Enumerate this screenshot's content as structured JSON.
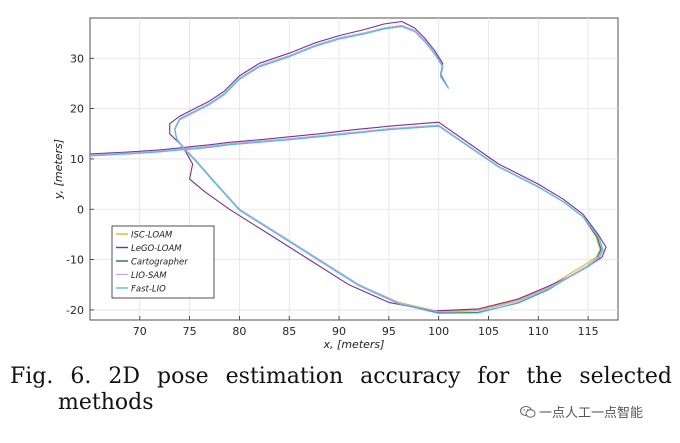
{
  "chart_data": {
    "type": "line",
    "title": "",
    "xlabel": "x, [meters]",
    "ylabel": "y, [meters]",
    "xlim": [
      65,
      118
    ],
    "ylim": [
      -22,
      38
    ],
    "xticks": [
      70,
      75,
      80,
      85,
      90,
      95,
      100,
      105,
      110,
      115
    ],
    "yticks": [
      -20,
      -10,
      0,
      10,
      20,
      30
    ],
    "grid": true,
    "legend_position": "bottom-left",
    "series": [
      {
        "name": "ISC-LOAM",
        "color": "#EDB120",
        "x": [
          101.0,
          100.2,
          100.4,
          99.6,
          98.6,
          97.6,
          96.3,
          94.5,
          92.5,
          90.0,
          87.5,
          85.0,
          82.0,
          80.0,
          78.5,
          77.0,
          75.5,
          74.0,
          73.5,
          73.7,
          74.5,
          75.5,
          77.5,
          80.0,
          84.0,
          88.0,
          92.0,
          96.0,
          100.0,
          104.0,
          108.0,
          111.0,
          113.0,
          114.7,
          115.8,
          116.2,
          115.8,
          114.5,
          112.5,
          110.0,
          106.0,
          100.0,
          95.0,
          91.5,
          88.0,
          85.0,
          82.0,
          79.0,
          77.0,
          75.5,
          74.0,
          72.0,
          69.0,
          65.0
        ],
        "y": [
          24.0,
          26.5,
          28.5,
          31.0,
          33.5,
          35.5,
          36.5,
          36.0,
          35.0,
          34.0,
          32.5,
          30.5,
          28.5,
          26.0,
          23.0,
          21.0,
          19.5,
          18.0,
          16.0,
          14.0,
          12.0,
          10.0,
          5.5,
          0.0,
          -5.0,
          -10.0,
          -15.0,
          -18.5,
          -20.3,
          -20.0,
          -18.0,
          -15.5,
          -13.0,
          -11.0,
          -9.5,
          -8.0,
          -5.5,
          -1.5,
          1.5,
          4.5,
          8.5,
          16.7,
          16.0,
          15.3,
          14.6,
          14.0,
          13.5,
          13.0,
          12.5,
          12.2,
          12.0,
          11.6,
          11.2,
          10.8
        ]
      },
      {
        "name": "LeGO-LOAM",
        "color": "#7E2F8E",
        "x": [
          101.0,
          100.2,
          100.4,
          99.6,
          98.6,
          97.6,
          96.3,
          94.5,
          92.5,
          90.0,
          87.5,
          85.0,
          82.0,
          80.0,
          78.5,
          77.0,
          75.5,
          74.0,
          73.0,
          73.0,
          74.3,
          75.3,
          75.0,
          76.5,
          79.0,
          83.0,
          87.0,
          91.0,
          95.0,
          99.5,
          104.0,
          108.0,
          111.0,
          113.5,
          115.3,
          116.4,
          116.8,
          116.0,
          114.5,
          112.5,
          110.0,
          106.0,
          100.0,
          95.0,
          91.5,
          88.0,
          85.0,
          82.0,
          79.0,
          77.0,
          75.5,
          74.0,
          72.0,
          69.0,
          65.0
        ],
        "y": [
          24.0,
          26.8,
          29.0,
          31.5,
          34.0,
          36.0,
          37.3,
          36.8,
          35.7,
          34.5,
          33.0,
          31.0,
          29.0,
          26.5,
          23.5,
          21.5,
          20.0,
          18.5,
          17.0,
          15.0,
          12.5,
          9.0,
          6.0,
          3.5,
          0.0,
          -5.0,
          -10.0,
          -15.0,
          -18.5,
          -20.2,
          -19.8,
          -17.8,
          -15.3,
          -13.0,
          -11.0,
          -9.5,
          -7.5,
          -5.0,
          -1.0,
          2.0,
          5.0,
          9.0,
          17.3,
          16.5,
          15.8,
          15.0,
          14.4,
          13.8,
          13.3,
          12.8,
          12.5,
          12.2,
          11.8,
          11.4,
          11.0
        ]
      },
      {
        "name": "Cartographer",
        "color": "#1B6E6E",
        "x": [
          101.0,
          100.2,
          100.4,
          99.6,
          98.6,
          97.6,
          96.3,
          94.5,
          92.5,
          90.0,
          87.5,
          85.0,
          82.0,
          80.0,
          78.5,
          77.0,
          75.5,
          74.0,
          73.5,
          73.7,
          74.5,
          75.5,
          77.5,
          80.0,
          84.0,
          88.0,
          92.0,
          96.0,
          100.0,
          104.0,
          108.0,
          111.0,
          113.2,
          114.9,
          115.9,
          116.3,
          115.9,
          114.5,
          112.5,
          110.0,
          106.0,
          100.0,
          95.0,
          91.5,
          88.0,
          85.0,
          82.0,
          79.0,
          77.0,
          75.5,
          74.0,
          72.0,
          69.0,
          65.0
        ],
        "y": [
          24.0,
          26.5,
          28.5,
          31.0,
          33.5,
          35.5,
          36.5,
          36.0,
          35.0,
          34.0,
          32.5,
          30.5,
          28.5,
          26.0,
          23.0,
          21.0,
          19.5,
          18.0,
          16.0,
          14.0,
          12.0,
          10.0,
          5.5,
          0.0,
          -5.0,
          -10.0,
          -15.0,
          -18.7,
          -20.6,
          -20.5,
          -18.6,
          -16.0,
          -13.3,
          -11.3,
          -9.7,
          -8.0,
          -5.5,
          -1.5,
          1.5,
          4.5,
          8.5,
          16.6,
          15.9,
          15.2,
          14.5,
          13.9,
          13.4,
          12.9,
          12.4,
          12.1,
          11.9,
          11.5,
          11.1,
          10.7
        ]
      },
      {
        "name": "LIO-SAM",
        "color": "#C8A8E0",
        "x": [
          101.0,
          100.2,
          100.4,
          99.6,
          98.6,
          97.6,
          96.3,
          94.5,
          92.5,
          90.0,
          87.5,
          85.0,
          82.0,
          80.0,
          78.5,
          77.0,
          75.5,
          74.0,
          73.5,
          73.7,
          74.5,
          75.5,
          77.5,
          80.0,
          84.0,
          88.0,
          92.0,
          96.0,
          100.0,
          104.0,
          108.0,
          111.0,
          113.2,
          115.0,
          116.0,
          116.4,
          116.0,
          114.5,
          112.5,
          110.0,
          106.0,
          100.0,
          95.0,
          91.5,
          88.0,
          85.0,
          82.0,
          79.0,
          77.0,
          75.5,
          74.0,
          72.0,
          69.0,
          65.0
        ],
        "y": [
          24.0,
          26.5,
          28.5,
          31.0,
          33.5,
          35.5,
          36.5,
          36.0,
          35.0,
          34.0,
          32.5,
          30.5,
          28.5,
          26.0,
          23.0,
          21.0,
          19.5,
          18.0,
          16.0,
          14.0,
          12.0,
          10.0,
          5.5,
          0.0,
          -5.0,
          -10.0,
          -15.0,
          -18.6,
          -20.4,
          -20.2,
          -18.2,
          -15.7,
          -13.2,
          -11.2,
          -9.6,
          -8.0,
          -5.5,
          -1.5,
          1.5,
          4.5,
          8.5,
          16.7,
          16.0,
          15.3,
          14.6,
          14.0,
          13.5,
          13.0,
          12.5,
          12.2,
          12.0,
          11.6,
          11.2,
          10.8
        ]
      },
      {
        "name": "Fast-LIO",
        "color": "#4DBEEE",
        "x": [
          101.0,
          100.2,
          100.4,
          99.6,
          98.6,
          97.6,
          96.3,
          94.5,
          92.5,
          90.0,
          87.5,
          85.0,
          82.0,
          80.0,
          78.5,
          77.0,
          75.5,
          74.0,
          73.5,
          73.7,
          74.5,
          75.5,
          77.5,
          80.0,
          84.0,
          88.0,
          92.0,
          96.0,
          100.0,
          104.0,
          108.0,
          111.0,
          113.3,
          115.1,
          116.1,
          116.5,
          116.1,
          114.6,
          112.6,
          110.0,
          106.0,
          100.0,
          95.0,
          91.5,
          88.0,
          85.0,
          82.0,
          79.0,
          77.0,
          75.5,
          74.0,
          72.0,
          69.0,
          65.0
        ],
        "y": [
          24.0,
          26.3,
          28.3,
          30.8,
          33.3,
          35.3,
          36.3,
          35.8,
          34.8,
          33.8,
          32.3,
          30.3,
          28.3,
          25.8,
          22.8,
          20.8,
          19.3,
          17.8,
          15.8,
          13.8,
          11.8,
          9.8,
          5.3,
          -0.2,
          -5.2,
          -10.2,
          -15.2,
          -18.8,
          -20.7,
          -20.6,
          -18.5,
          -15.9,
          -13.3,
          -11.3,
          -9.7,
          -8.1,
          -5.6,
          -1.6,
          1.4,
          4.4,
          8.4,
          16.5,
          15.8,
          15.1,
          14.4,
          13.8,
          13.3,
          12.8,
          12.3,
          12.0,
          11.8,
          11.4,
          11.0,
          10.6
        ]
      }
    ]
  },
  "caption": {
    "line1": "Fig. 6. 2D pose estimation accuracy for the selected",
    "line2": "methods"
  },
  "watermark": {
    "text": "一点人工一点智能",
    "icon": "wechat-icon"
  }
}
